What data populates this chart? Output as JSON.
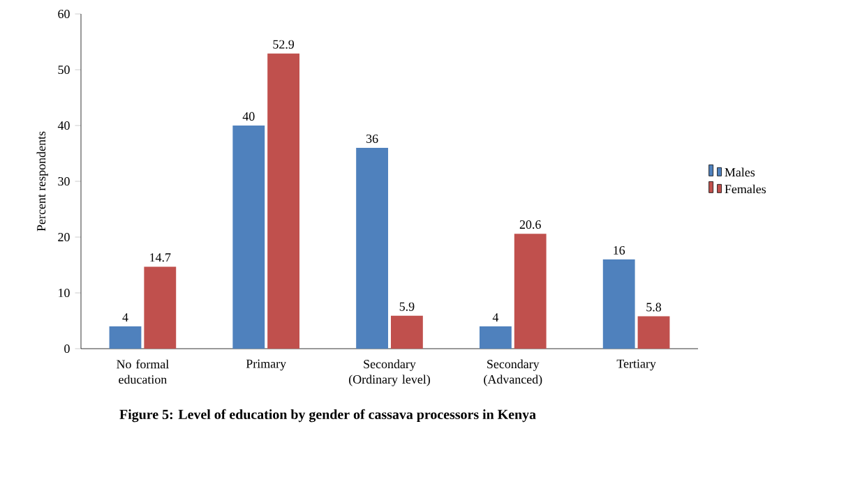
{
  "chart_data": {
    "type": "bar",
    "title": "Figure 5: Level of education by gender of cassava processors in Kenya",
    "ylabel": "Percent respondents",
    "categories": [
      "No formal education",
      "Primary",
      "Secondary (Ordinary level)",
      "Secondary (Advanced)",
      "Tertiary"
    ],
    "series": [
      {
        "name": "Males",
        "color": "#4f81bd",
        "values": [
          4,
          40,
          36,
          4,
          16
        ]
      },
      {
        "name": "Females",
        "color": "#c0504d",
        "values": [
          14.7,
          52.9,
          5.9,
          20.6,
          5.8
        ]
      }
    ],
    "ylim": [
      0,
      60
    ],
    "yticks": [
      0,
      10,
      20,
      30,
      40,
      50,
      60
    ],
    "data_labels": true,
    "legend": "right",
    "grid": false
  }
}
